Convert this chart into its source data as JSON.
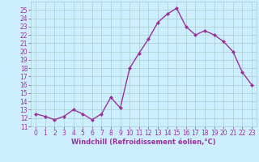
{
  "hours": [
    0,
    1,
    2,
    3,
    4,
    5,
    6,
    7,
    8,
    9,
    10,
    11,
    12,
    13,
    14,
    15,
    16,
    17,
    18,
    19,
    20,
    21,
    22,
    23
  ],
  "windchill": [
    12.5,
    12.2,
    11.8,
    12.2,
    13.0,
    12.5,
    11.8,
    12.5,
    14.5,
    13.2,
    18.0,
    19.8,
    21.5,
    23.5,
    24.5,
    25.2,
    23.0,
    22.0,
    22.5,
    22.0,
    21.2,
    20.0,
    17.5,
    16.0
  ],
  "line_color": "#993399",
  "marker": "D",
  "marker_size": 2,
  "bg_color": "#cceeff",
  "grid_color": "#aacccc",
  "xlabel": "Windchill (Refroidissement éolien,°C)",
  "xlabel_color": "#993399",
  "tick_color": "#993399",
  "ylim": [
    11,
    26
  ],
  "xlim": [
    -0.5,
    23.5
  ],
  "yticks": [
    11,
    12,
    13,
    14,
    15,
    16,
    17,
    18,
    19,
    20,
    21,
    22,
    23,
    24,
    25
  ],
  "xticks": [
    0,
    1,
    2,
    3,
    4,
    5,
    6,
    7,
    8,
    9,
    10,
    11,
    12,
    13,
    14,
    15,
    16,
    17,
    18,
    19,
    20,
    21,
    22,
    23
  ],
  "line_width": 1.0,
  "tick_fontsize": 5.5,
  "xlabel_fontsize": 6.0
}
